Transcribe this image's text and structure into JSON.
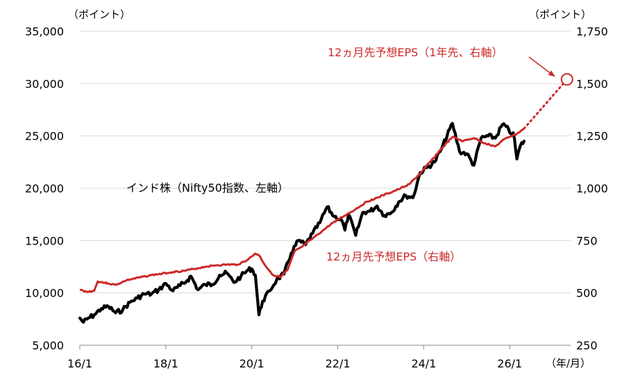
{
  "chart_data": {
    "type": "line",
    "left_axis": {
      "unit": "（ポイント）",
      "ylim": [
        5000,
        35000
      ],
      "ticks": [
        "5,000",
        "10,000",
        "15,000",
        "20,000",
        "25,000",
        "30,000",
        "35,000"
      ]
    },
    "right_axis": {
      "unit": "（ポイント）",
      "ylim": [
        250,
        1750
      ],
      "ticks": [
        "250",
        "500",
        "750",
        "1,000",
        "1,250",
        "1,500",
        "1,750"
      ]
    },
    "x_axis": {
      "unit": "（年/月）",
      "ticks": [
        "16/1",
        "18/1",
        "20/1",
        "22/1",
        "24/1",
        "26/1"
      ],
      "xlim": [
        "2016-01",
        "2027-06"
      ]
    },
    "series": [
      {
        "name": "インド株（Nifty50指数、左軸）",
        "axis": "left",
        "color": "#000000",
        "points": [
          [
            "2016-01",
            7600
          ],
          [
            "2016-02",
            7200
          ],
          [
            "2016-03",
            7500
          ],
          [
            "2016-05",
            7900
          ],
          [
            "2016-07",
            8500
          ],
          [
            "2016-09",
            8700
          ],
          [
            "2016-11",
            8100
          ],
          [
            "2017-01",
            8400
          ],
          [
            "2017-03",
            9100
          ],
          [
            "2017-05",
            9500
          ],
          [
            "2017-07",
            9900
          ],
          [
            "2017-09",
            9900
          ],
          [
            "2017-11",
            10300
          ],
          [
            "2018-01",
            10900
          ],
          [
            "2018-03",
            10200
          ],
          [
            "2018-05",
            10700
          ],
          [
            "2018-07",
            11200
          ],
          [
            "2018-08",
            11600
          ],
          [
            "2018-10",
            10300
          ],
          [
            "2018-12",
            10800
          ],
          [
            "2019-02",
            10800
          ],
          [
            "2019-04",
            11700
          ],
          [
            "2019-06",
            11900
          ],
          [
            "2019-08",
            11000
          ],
          [
            "2019-10",
            11600
          ],
          [
            "2019-12",
            12200
          ],
          [
            "2020-01",
            12300
          ],
          [
            "2020-02",
            11700
          ],
          [
            "2020-03",
            7900
          ],
          [
            "2020-04",
            9200
          ],
          [
            "2020-06",
            10200
          ],
          [
            "2020-08",
            11300
          ],
          [
            "2020-10",
            11800
          ],
          [
            "2020-12",
            13800
          ],
          [
            "2021-02",
            15000
          ],
          [
            "2021-04",
            14600
          ],
          [
            "2021-06",
            15700
          ],
          [
            "2021-08",
            16700
          ],
          [
            "2021-10",
            18200
          ],
          [
            "2021-12",
            17300
          ],
          [
            "2022-02",
            17000
          ],
          [
            "2022-03",
            16000
          ],
          [
            "2022-04",
            17500
          ],
          [
            "2022-06",
            15500
          ],
          [
            "2022-08",
            17700
          ],
          [
            "2022-10",
            17800
          ],
          [
            "2022-12",
            18300
          ],
          [
            "2023-02",
            17400
          ],
          [
            "2023-04",
            17700
          ],
          [
            "2023-06",
            18700
          ],
          [
            "2023-08",
            19300
          ],
          [
            "2023-10",
            19100
          ],
          [
            "2023-12",
            21500
          ],
          [
            "2024-02",
            22000
          ],
          [
            "2024-04",
            22500
          ],
          [
            "2024-06",
            23800
          ],
          [
            "2024-09",
            26200
          ],
          [
            "2024-11",
            23500
          ],
          [
            "2025-01",
            23300
          ],
          [
            "2025-03",
            22200
          ],
          [
            "2025-05",
            24800
          ],
          [
            "2025-07",
            25000
          ],
          [
            "2025-09",
            24800
          ],
          [
            "2025-11",
            26100
          ],
          [
            "2025-12",
            25900
          ],
          [
            "2026-01",
            25300
          ],
          [
            "2026-02",
            25300
          ],
          [
            "2026-03",
            22800
          ],
          [
            "2026-04",
            24100
          ],
          [
            "2026-05",
            24500
          ]
        ]
      },
      {
        "name": "12ヵ月先予想EPS（右軸）",
        "axis": "right",
        "color": "#cc2a2a",
        "points": [
          [
            "2016-01",
            515
          ],
          [
            "2016-03",
            505
          ],
          [
            "2016-05",
            510
          ],
          [
            "2016-06",
            555
          ],
          [
            "2016-09",
            545
          ],
          [
            "2016-11",
            538
          ],
          [
            "2017-02",
            560
          ],
          [
            "2017-06",
            575
          ],
          [
            "2017-09",
            585
          ],
          [
            "2017-12",
            592
          ],
          [
            "2018-03",
            600
          ],
          [
            "2018-06",
            605
          ],
          [
            "2018-09",
            615
          ],
          [
            "2018-12",
            625
          ],
          [
            "2019-03",
            632
          ],
          [
            "2019-06",
            635
          ],
          [
            "2019-09",
            635
          ],
          [
            "2019-12",
            660
          ],
          [
            "2020-02",
            688
          ],
          [
            "2020-03",
            680
          ],
          [
            "2020-05",
            625
          ],
          [
            "2020-07",
            585
          ],
          [
            "2020-09",
            575
          ],
          [
            "2020-11",
            610
          ],
          [
            "2021-01",
            700
          ],
          [
            "2021-03",
            720
          ],
          [
            "2021-06",
            760
          ],
          [
            "2021-09",
            800
          ],
          [
            "2021-12",
            840
          ],
          [
            "2022-03",
            870
          ],
          [
            "2022-06",
            900
          ],
          [
            "2022-09",
            935
          ],
          [
            "2022-12",
            955
          ],
          [
            "2023-03",
            975
          ],
          [
            "2023-06",
            995
          ],
          [
            "2023-09",
            1020
          ],
          [
            "2023-12",
            1070
          ],
          [
            "2024-03",
            1130
          ],
          [
            "2024-06",
            1190
          ],
          [
            "2024-09",
            1245
          ],
          [
            "2024-12",
            1225
          ],
          [
            "2025-03",
            1240
          ],
          [
            "2025-06",
            1215
          ],
          [
            "2025-09",
            1200
          ],
          [
            "2025-12",
            1240
          ],
          [
            "2026-03",
            1260
          ],
          [
            "2026-05",
            1285
          ]
        ]
      },
      {
        "name": "12ヵ月先予想EPS（1年先、右軸）",
        "axis": "right",
        "color": "#cc2a2a",
        "style": "dotted",
        "points": [
          [
            "2026-05",
            1285
          ],
          [
            "2027-05",
            1520
          ]
        ],
        "marker": {
          "date": "2027-05",
          "value": 1520
        }
      }
    ]
  }
}
